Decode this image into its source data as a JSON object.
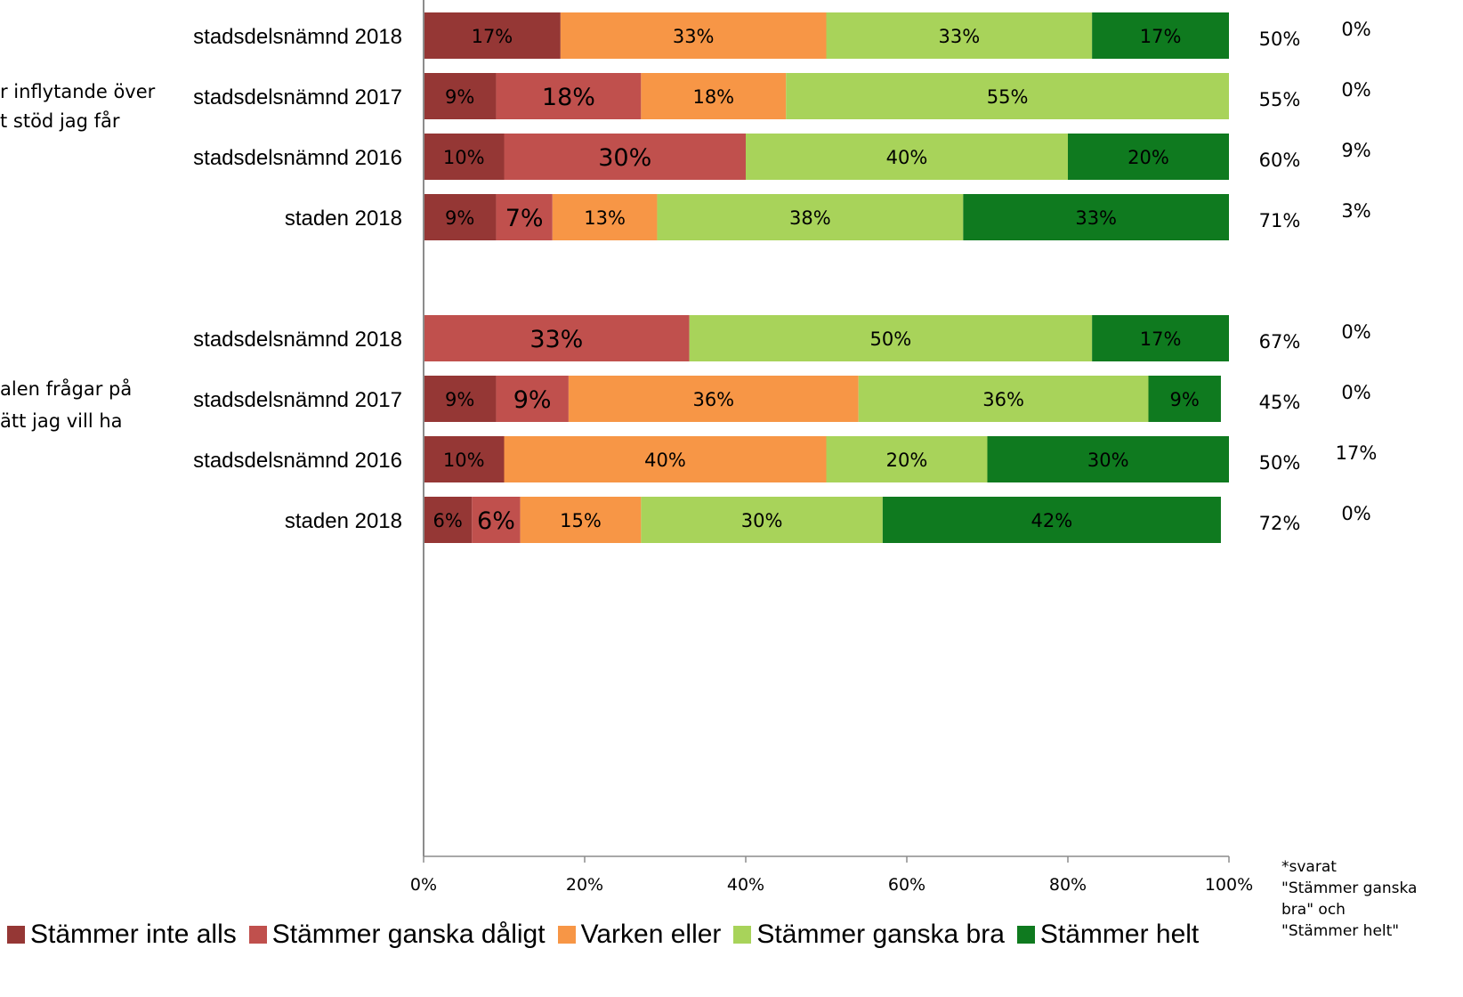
{
  "chart_data": {
    "type": "bar",
    "orientation": "horizontal",
    "stacked": true,
    "xlim": [
      0,
      100
    ],
    "xticks": [
      "0%",
      "20%",
      "40%",
      "60%",
      "80%",
      "100%"
    ],
    "series": [
      {
        "name": "Stämmer inte alls",
        "color": "#953735"
      },
      {
        "name": "Stämmer ganska dåligt",
        "color": "#c0504d"
      },
      {
        "name": "Varken eller",
        "color": "#f79646"
      },
      {
        "name": "Stämmer ganska bra",
        "color": "#a8d35a"
      },
      {
        "name": "Stämmer helt",
        "color": "#0f7a1f"
      }
    ],
    "groups": [
      {
        "label_lines": [
          "r inflytande över",
          "t stöd jag får"
        ],
        "rows": [
          {
            "label": "stadsdelsnämnd 2018",
            "values": [
              17,
              0,
              33,
              33,
              17
            ],
            "value_labels": [
              "17%",
              "",
              "33%",
              "33%",
              "17%"
            ],
            "right1": "50%",
            "right2": "0%"
          },
          {
            "label": "stadsdelsnämnd 2017",
            "values": [
              9,
              18,
              18,
              55,
              0
            ],
            "value_labels": [
              "9%",
              "18%",
              "18%",
              "55%",
              ""
            ],
            "right1": "55%",
            "right2": "0%"
          },
          {
            "label": "stadsdelsnämnd 2016",
            "values": [
              10,
              30,
              0,
              40,
              20
            ],
            "value_labels": [
              "10%",
              "30%",
              "",
              "40%",
              "20%"
            ],
            "right1": "60%",
            "right2": "9%"
          },
          {
            "label": "staden 2018",
            "values": [
              9,
              7,
              13,
              38,
              33
            ],
            "value_labels": [
              "9%",
              "7%",
              "13%",
              "38%",
              "33%"
            ],
            "right1": "71%",
            "right2": "3%"
          }
        ]
      },
      {
        "label_lines": [
          "alen frågar på",
          "ätt jag vill ha"
        ],
        "rows": [
          {
            "label": "stadsdelsnämnd 2018",
            "values": [
              0,
              33,
              0,
              50,
              17
            ],
            "value_labels": [
              "",
              "33%",
              "",
              "50%",
              "17%"
            ],
            "right1": "67%",
            "right2": "0%"
          },
          {
            "label": "stadsdelsnämnd 2017",
            "values": [
              9,
              9,
              36,
              36,
              9
            ],
            "value_labels": [
              "9%",
              "9%",
              "36%",
              "36%",
              "9%"
            ],
            "right1": "45%",
            "right2": "0%"
          },
          {
            "label": "stadsdelsnämnd 2016",
            "values": [
              10,
              0,
              40,
              20,
              30
            ],
            "value_labels": [
              "10%",
              "",
              "40%",
              "20%",
              "30%"
            ],
            "right1": "50%",
            "right2": "17%"
          },
          {
            "label": "staden 2018",
            "values": [
              6,
              6,
              15,
              30,
              42
            ],
            "value_labels": [
              "6%",
              "6%",
              "15%",
              "30%",
              "42%"
            ],
            "right1": "72%",
            "right2": "0%"
          }
        ]
      }
    ],
    "note": "*svarat\n\"Stämmer ganska\nbra\" och\n\"Stämmer helt\""
  }
}
